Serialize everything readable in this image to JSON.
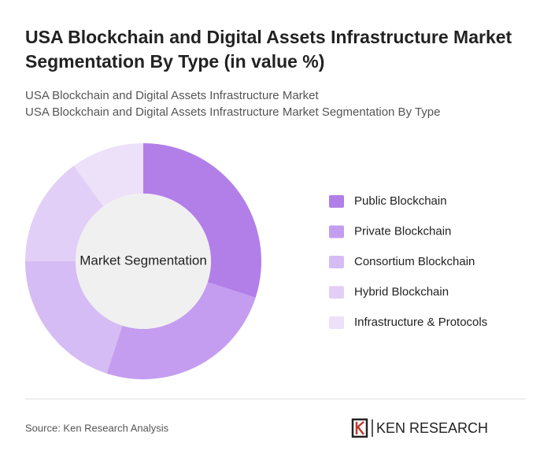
{
  "chart_data": {
    "type": "donut",
    "title": "USA Blockchain and Digital Assets Infrastructure Market Segmentation By Type (in value %)",
    "subtitle_lines": [
      "USA Blockchain and Digital Assets Infrastructure Market",
      "USA Blockchain and Digital Assets Infrastructure Market Segmentation By Type"
    ],
    "center_label": "Market Segmentation",
    "categories": [
      "Public Blockchain",
      "Private Blockchain",
      "Consortium Blockchain",
      "Hybrid Blockchain",
      "Infrastructure & Protocols"
    ],
    "values": [
      30,
      25,
      20,
      15,
      10
    ],
    "colors": [
      "#b27fe9",
      "#c49df0",
      "#d6bcf4",
      "#e2cff7",
      "#ece1f9"
    ],
    "source": "Source: Ken Research Analysis",
    "brand": "KEN RESEARCH"
  }
}
